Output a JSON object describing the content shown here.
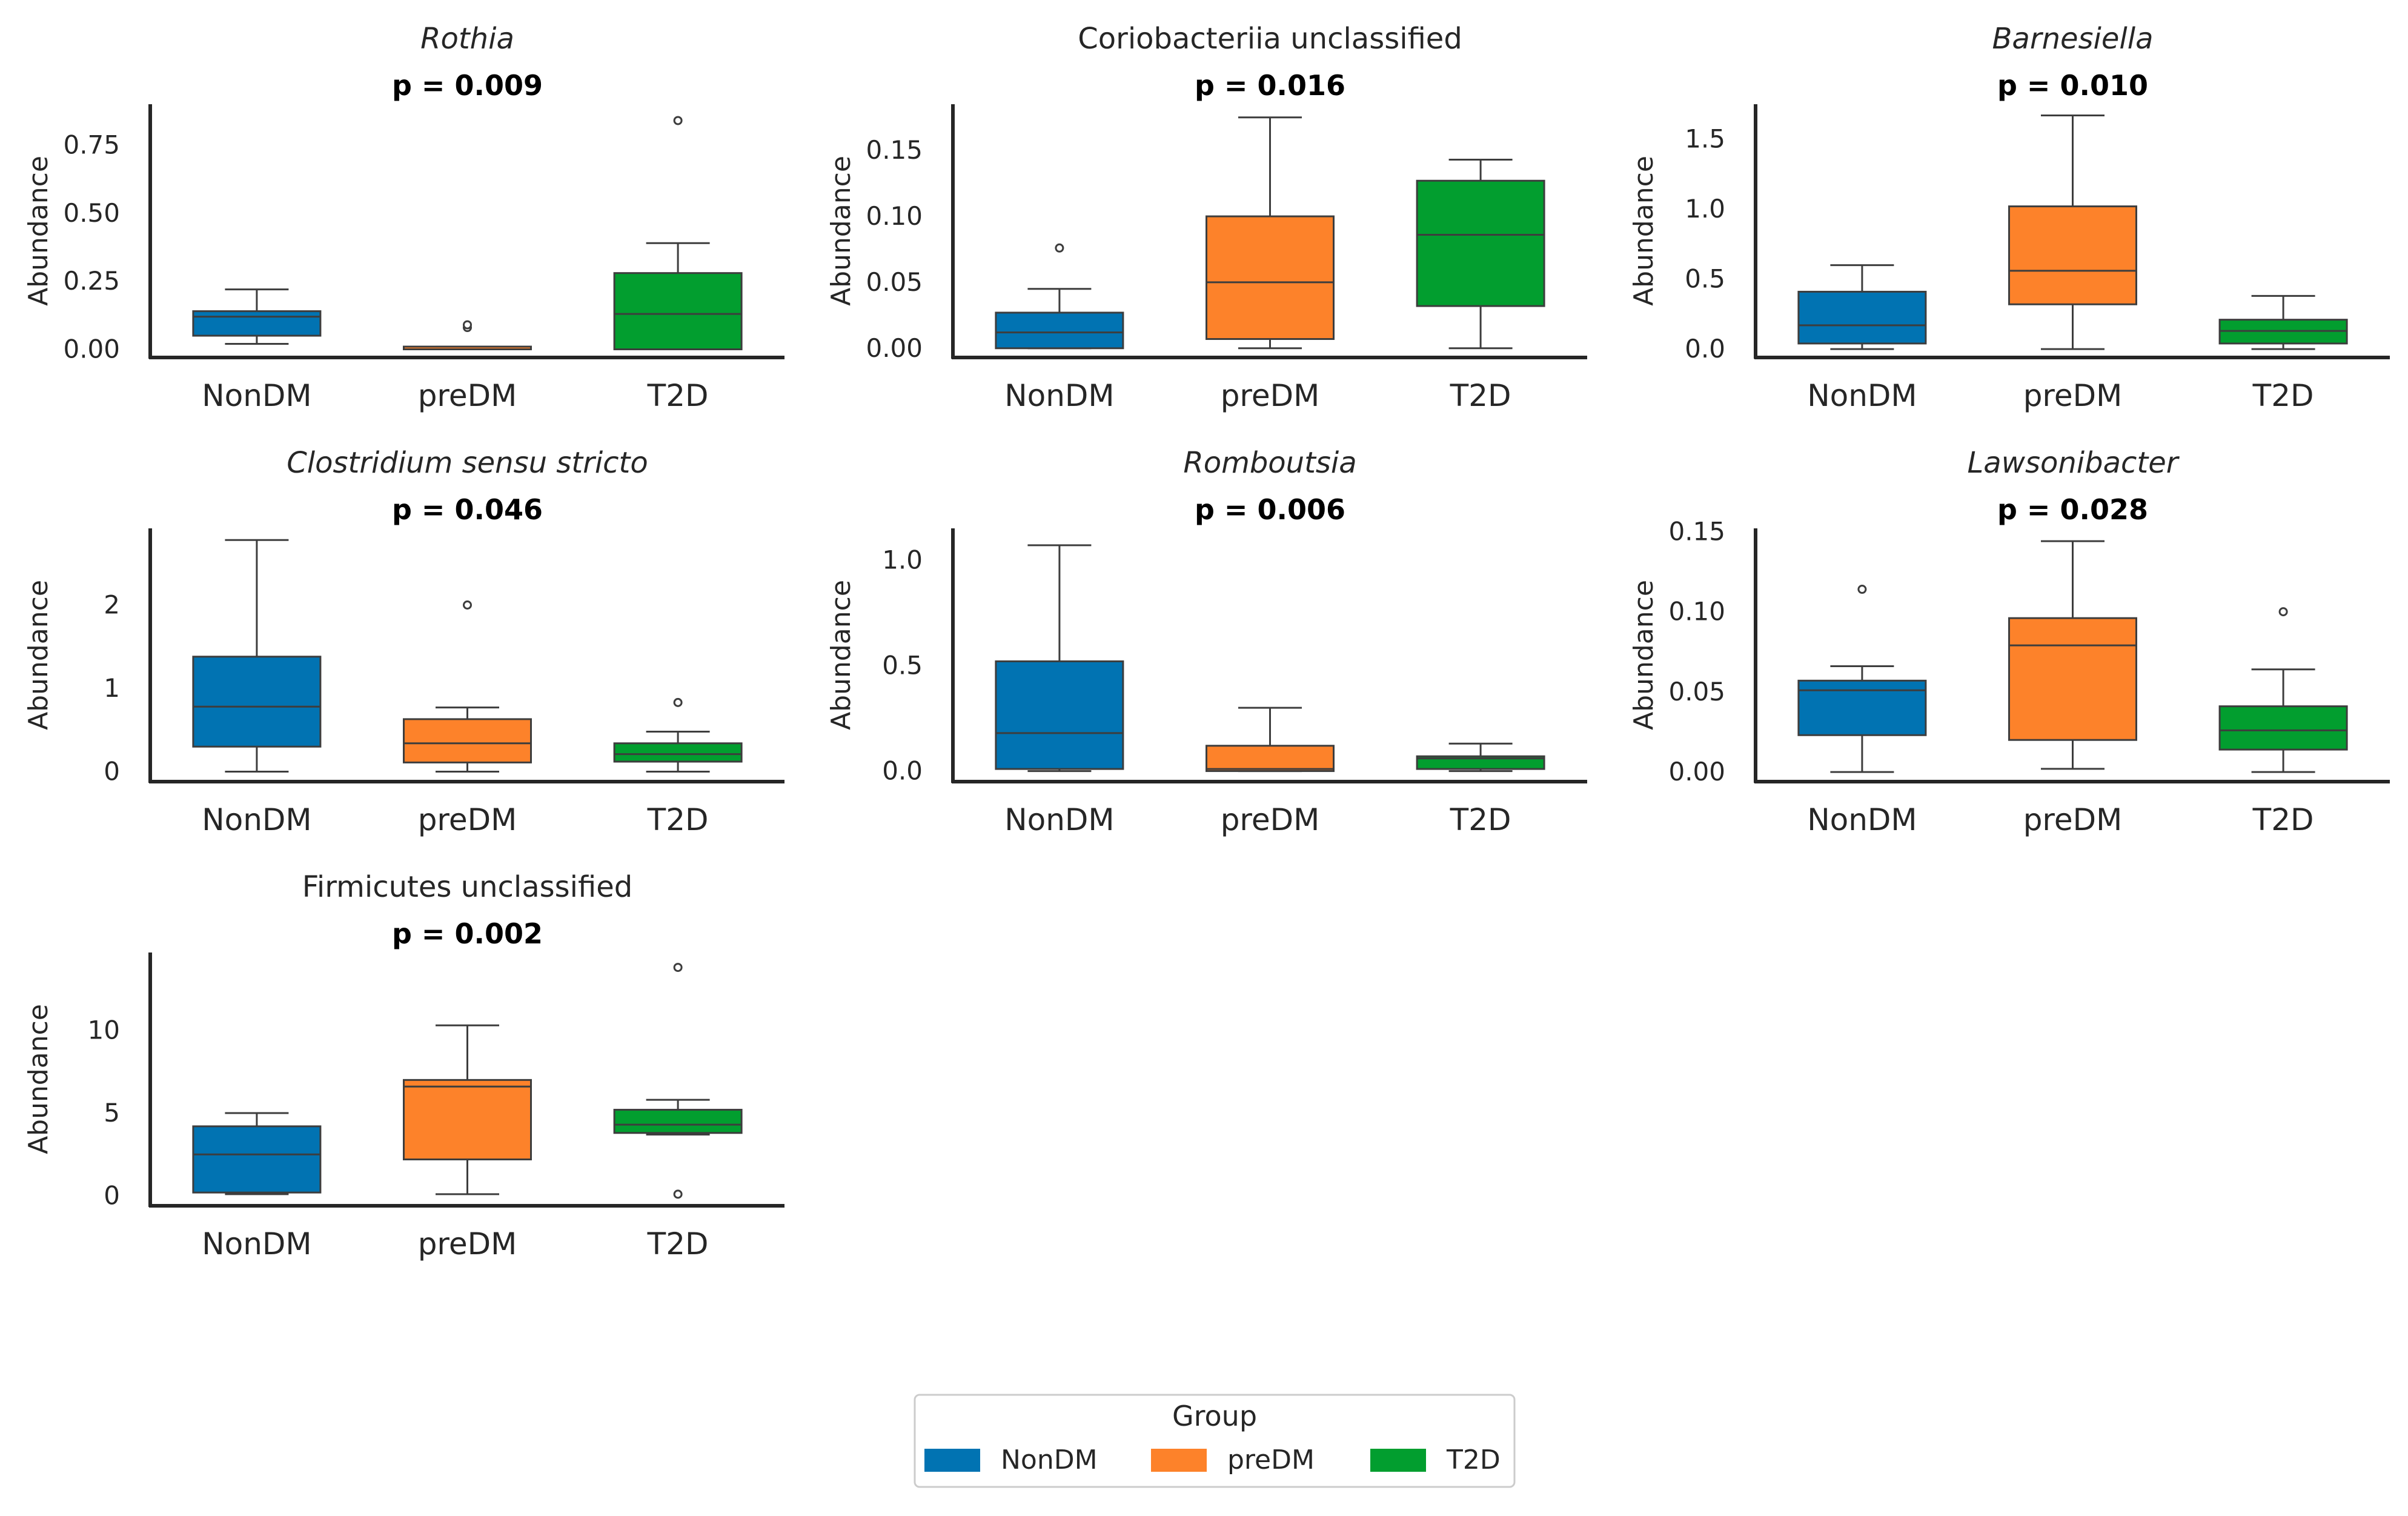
{
  "chart_data": [
    {
      "type": "box",
      "title": "Rothia",
      "title_italic": true,
      "p_value": "p = 0.009",
      "ylabel": "Abundance",
      "ylim": [
        -0.03,
        0.9
      ],
      "yticks": [
        0.0,
        0.25,
        0.5,
        0.75
      ],
      "ytick_labels": [
        "0.00",
        "0.25",
        "0.50",
        "0.75"
      ],
      "categories": [
        "NonDM",
        "preDM",
        "T2D"
      ],
      "boxes": [
        {
          "group": "NonDM",
          "whisker_low": 0.02,
          "q1": 0.05,
          "median": 0.12,
          "q3": 0.14,
          "whisker_high": 0.22,
          "outliers": []
        },
        {
          "group": "preDM",
          "whisker_low": 0.0,
          "q1": 0.0,
          "median": 0.0,
          "q3": 0.01,
          "whisker_high": 0.01,
          "outliers": [
            0.08,
            0.09
          ]
        },
        {
          "group": "T2D",
          "whisker_low": 0.0,
          "q1": 0.0,
          "median": 0.13,
          "q3": 0.28,
          "whisker_high": 0.39,
          "outliers": [
            0.84
          ]
        }
      ]
    },
    {
      "type": "box",
      "title": "Coriobacteriia unclassified",
      "title_italic": false,
      "p_value": "p = 0.016",
      "ylabel": "Abundance",
      "ylim": [
        -0.007,
        0.185
      ],
      "yticks": [
        0.0,
        0.05,
        0.1,
        0.15
      ],
      "ytick_labels": [
        "0.00",
        "0.05",
        "0.10",
        "0.15"
      ],
      "categories": [
        "NonDM",
        "preDM",
        "T2D"
      ],
      "boxes": [
        {
          "group": "NonDM",
          "whisker_low": 0.0,
          "q1": 0.0,
          "median": 0.012,
          "q3": 0.027,
          "whisker_high": 0.045,
          "outliers": [
            0.076
          ]
        },
        {
          "group": "preDM",
          "whisker_low": 0.0,
          "q1": 0.007,
          "median": 0.05,
          "q3": 0.1,
          "whisker_high": 0.175,
          "outliers": []
        },
        {
          "group": "T2D",
          "whisker_low": 0.0,
          "q1": 0.032,
          "median": 0.086,
          "q3": 0.127,
          "whisker_high": 0.143,
          "outliers": []
        }
      ]
    },
    {
      "type": "box",
      "title": "Barnesiella",
      "title_italic": true,
      "p_value": "p = 0.010",
      "ylabel": "Abundance",
      "ylim": [
        -0.06,
        1.75
      ],
      "yticks": [
        0.0,
        0.5,
        1.0,
        1.5
      ],
      "ytick_labels": [
        "0.0",
        "0.5",
        "1.0",
        "1.5"
      ],
      "categories": [
        "NonDM",
        "preDM",
        "T2D"
      ],
      "boxes": [
        {
          "group": "NonDM",
          "whisker_low": 0.0,
          "q1": 0.04,
          "median": 0.17,
          "q3": 0.41,
          "whisker_high": 0.6,
          "outliers": []
        },
        {
          "group": "preDM",
          "whisker_low": 0.0,
          "q1": 0.32,
          "median": 0.56,
          "q3": 1.02,
          "whisker_high": 1.67,
          "outliers": []
        },
        {
          "group": "T2D",
          "whisker_low": 0.0,
          "q1": 0.04,
          "median": 0.13,
          "q3": 0.21,
          "whisker_high": 0.38,
          "outliers": []
        }
      ]
    },
    {
      "type": "box",
      "title": "Clostridium sensu stricto",
      "title_italic": true,
      "p_value": "p = 0.046",
      "ylabel": "Abundance",
      "ylim": [
        -0.12,
        2.92
      ],
      "yticks": [
        0,
        1,
        2
      ],
      "ytick_labels": [
        "0",
        "1",
        "2"
      ],
      "categories": [
        "NonDM",
        "preDM",
        "T2D"
      ],
      "boxes": [
        {
          "group": "NonDM",
          "whisker_low": 0.0,
          "q1": 0.3,
          "median": 0.78,
          "q3": 1.38,
          "whisker_high": 2.78,
          "outliers": []
        },
        {
          "group": "preDM",
          "whisker_low": 0.0,
          "q1": 0.11,
          "median": 0.34,
          "q3": 0.63,
          "whisker_high": 0.77,
          "outliers": [
            2.0
          ]
        },
        {
          "group": "T2D",
          "whisker_low": 0.0,
          "q1": 0.12,
          "median": 0.21,
          "q3": 0.34,
          "whisker_high": 0.48,
          "outliers": [
            0.83
          ]
        }
      ]
    },
    {
      "type": "box",
      "title": "Romboutsia",
      "title_italic": true,
      "p_value": "p = 0.006",
      "ylabel": "Abundance",
      "ylim": [
        -0.05,
        1.15
      ],
      "yticks": [
        0.0,
        0.5,
        1.0
      ],
      "ytick_labels": [
        "0.0",
        "0.5",
        "1.0"
      ],
      "categories": [
        "NonDM",
        "preDM",
        "T2D"
      ],
      "boxes": [
        {
          "group": "NonDM",
          "whisker_low": 0.0,
          "q1": 0.01,
          "median": 0.18,
          "q3": 0.52,
          "whisker_high": 1.07,
          "outliers": []
        },
        {
          "group": "preDM",
          "whisker_low": 0.0,
          "q1": 0.0,
          "median": 0.01,
          "q3": 0.12,
          "whisker_high": 0.3,
          "outliers": []
        },
        {
          "group": "T2D",
          "whisker_low": 0.0,
          "q1": 0.01,
          "median": 0.06,
          "q3": 0.07,
          "whisker_high": 0.13,
          "outliers": []
        }
      ]
    },
    {
      "type": "box",
      "title": "Lawsonibacter",
      "title_italic": true,
      "p_value": "p = 0.028",
      "ylabel": "Abundance",
      "ylim": [
        -0.006,
        0.152
      ],
      "yticks": [
        0.0,
        0.05,
        0.1,
        0.15
      ],
      "ytick_labels": [
        "0.00",
        "0.05",
        "0.10",
        "0.15"
      ],
      "categories": [
        "NonDM",
        "preDM",
        "T2D"
      ],
      "boxes": [
        {
          "group": "NonDM",
          "whisker_low": 0.0,
          "q1": 0.023,
          "median": 0.051,
          "q3": 0.057,
          "whisker_high": 0.066,
          "outliers": [
            0.114
          ]
        },
        {
          "group": "preDM",
          "whisker_low": 0.002,
          "q1": 0.02,
          "median": 0.079,
          "q3": 0.096,
          "whisker_high": 0.144,
          "outliers": []
        },
        {
          "group": "T2D",
          "whisker_low": 0.0,
          "q1": 0.014,
          "median": 0.026,
          "q3": 0.041,
          "whisker_high": 0.064,
          "outliers": [
            0.1
          ]
        }
      ]
    },
    {
      "type": "box",
      "title": "Firmicutes unclassified",
      "title_italic": false,
      "p_value": "p = 0.002",
      "ylabel": "Abundance",
      "ylim": [
        -0.6,
        14.7
      ],
      "yticks": [
        0,
        5,
        10
      ],
      "ytick_labels": [
        "0",
        "5",
        "10"
      ],
      "categories": [
        "NonDM",
        "preDM",
        "T2D"
      ],
      "boxes": [
        {
          "group": "NonDM",
          "whisker_low": 0.1,
          "q1": 0.2,
          "median": 2.5,
          "q3": 4.2,
          "whisker_high": 5.0,
          "outliers": []
        },
        {
          "group": "preDM",
          "whisker_low": 0.1,
          "q1": 2.2,
          "median": 6.6,
          "q3": 7.0,
          "whisker_high": 10.3,
          "outliers": []
        },
        {
          "group": "T2D",
          "whisker_low": 3.7,
          "q1": 3.8,
          "median": 4.3,
          "q3": 5.2,
          "whisker_high": 5.8,
          "outliers": [
            0.1,
            13.8
          ]
        }
      ]
    }
  ],
  "legend": {
    "title": "Group",
    "items": [
      {
        "label": "NonDM",
        "color": "#0173b2"
      },
      {
        "label": "preDM",
        "color": "#fd822a"
      },
      {
        "label": "T2D",
        "color": "#029e2f"
      }
    ]
  },
  "colors": {
    "NonDM": "#0173b2",
    "preDM": "#fd822a",
    "T2D": "#029e2f",
    "axis": "#262626",
    "stroke": "#3d3d3d"
  }
}
